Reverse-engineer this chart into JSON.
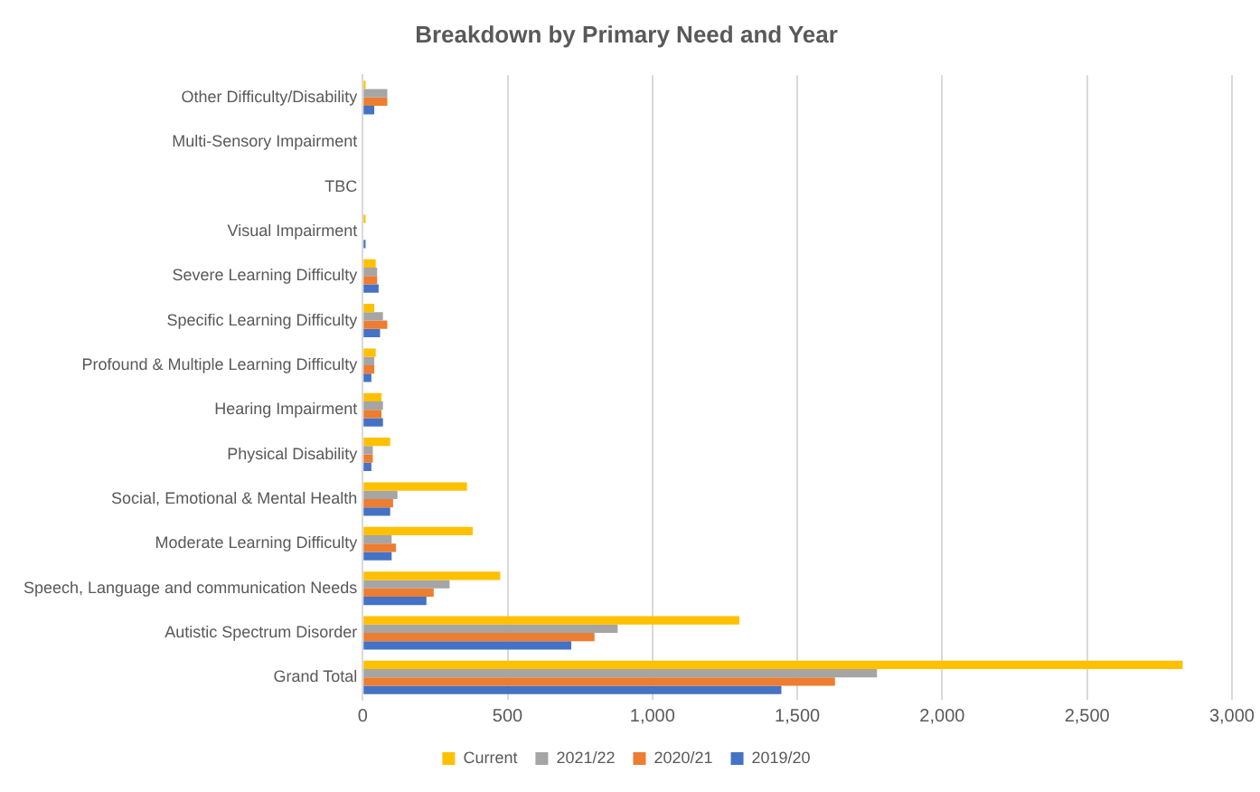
{
  "chart_data": {
    "type": "bar",
    "orientation": "horizontal",
    "title": "Breakdown by Primary Need and Year",
    "categories": [
      "Other Difficulty/Disability",
      "Multi-Sensory Impairment",
      "TBC",
      "Visual Impairment",
      "Severe Learning Difficulty",
      "Specific Learning Difficulty",
      "Profound & Multiple Learning Difficulty",
      "Hearing Impairment",
      "Physical Disability",
      "Social, Emotional & Mental Health",
      "Moderate Learning Difficulty",
      "Speech, Language and communication Needs",
      "Autistic Spectrum Disorder",
      "Grand Total"
    ],
    "series": [
      {
        "name": "Current",
        "color": "#ffc000",
        "values": [
          10,
          0,
          0,
          10,
          45,
          40,
          45,
          65,
          95,
          360,
          380,
          475,
          1300,
          2830
        ]
      },
      {
        "name": "2021/22",
        "color": "#a5a5a5",
        "values": [
          85,
          0,
          0,
          null,
          50,
          70,
          40,
          70,
          35,
          120,
          100,
          300,
          880,
          1775
        ]
      },
      {
        "name": "2020/21",
        "color": "#ed7d31",
        "values": [
          85,
          0,
          0,
          null,
          50,
          85,
          40,
          65,
          35,
          105,
          115,
          245,
          800,
          1630
        ]
      },
      {
        "name": "2019/20",
        "color": "#4472c4",
        "values": [
          40,
          0,
          0,
          10,
          55,
          60,
          30,
          70,
          30,
          95,
          100,
          220,
          720,
          1445
        ]
      }
    ],
    "xlim": [
      0,
      3000
    ],
    "xticks": [
      {
        "value": 0,
        "label": "0"
      },
      {
        "value": 500,
        "label": "500"
      },
      {
        "value": 1000,
        "label": "1,000"
      },
      {
        "value": 1500,
        "label": "1,500"
      },
      {
        "value": 2000,
        "label": "2,000"
      },
      {
        "value": 2500,
        "label": "2,500"
      },
      {
        "value": 3000,
        "label": "3,000"
      }
    ],
    "grid": "x",
    "legend": "bottom"
  }
}
